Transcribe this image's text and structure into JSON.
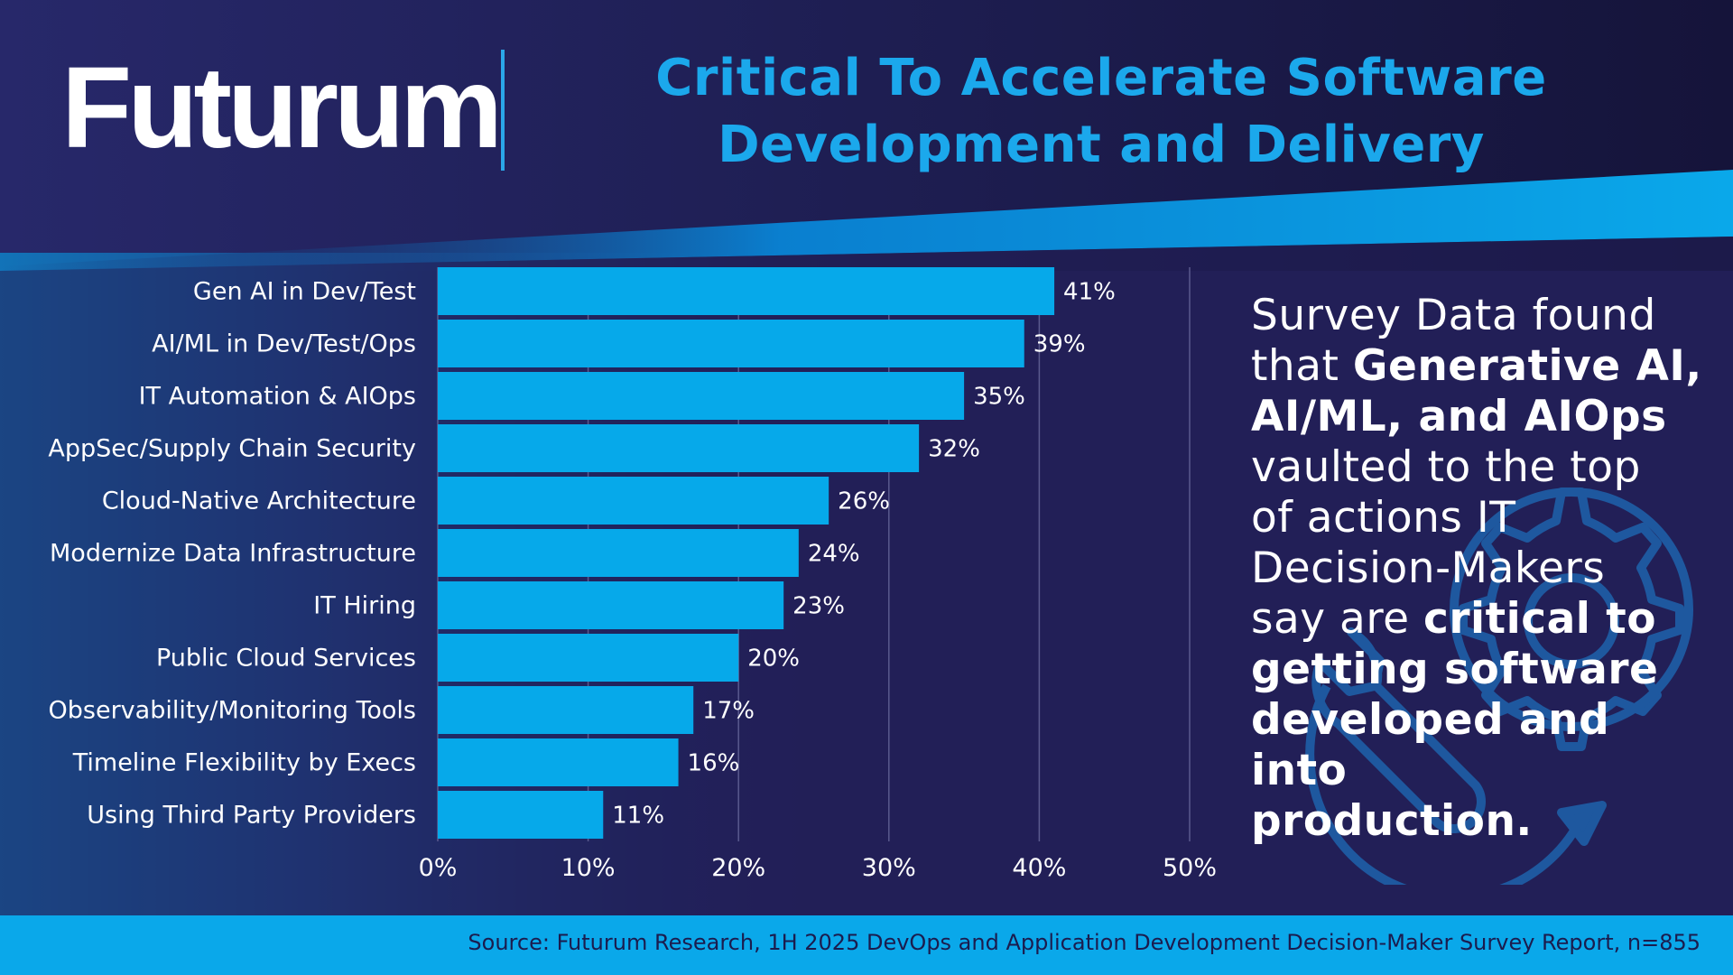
{
  "brand": {
    "logo_text": "Futurum",
    "accent_color": "#1ba8ec",
    "background_color": "#221f57",
    "bar_color": "#06a9ea"
  },
  "header": {
    "title_line1": "Critical To Accelerate Software",
    "title_line2": "Development and Delivery"
  },
  "chart_data": {
    "type": "bar",
    "orientation": "horizontal",
    "title": "Critical To Accelerate Software Development and Delivery",
    "categories": [
      "Gen AI in Dev/Test",
      "AI/ML in Dev/Test/Ops",
      "IT Automation & AIOps",
      "AppSec/Supply Chain Security",
      "Cloud-Native Architecture",
      "Modernize Data Infrastructure",
      "IT Hiring",
      "Public Cloud Services",
      "Observability/Monitoring Tools",
      "Timeline Flexibility by Execs",
      "Using Third Party Providers"
    ],
    "values": [
      41,
      39,
      35,
      32,
      26,
      24,
      23,
      20,
      17,
      16,
      11
    ],
    "value_labels": [
      "41%",
      "39%",
      "35%",
      "32%",
      "26%",
      "24%",
      "23%",
      "20%",
      "17%",
      "16%",
      "11%"
    ],
    "xlim": [
      0,
      50
    ],
    "xticks": [
      0,
      10,
      20,
      30,
      40,
      50
    ],
    "xtick_labels": [
      "0%",
      "10%",
      "20%",
      "30%",
      "40%",
      "50%"
    ],
    "xlabel": "",
    "ylabel": "",
    "grid": true
  },
  "side_panel": {
    "t1": "Survey Data found",
    "t2": "that ",
    "t3": "Generative AI,",
    "t4": "AI/ML, and AIOps",
    "t5": "vaulted to the top",
    "t6": "of actions IT",
    "t7": "Decision-Makers",
    "t8": "say are ",
    "t9": "critical to",
    "t10": "getting software",
    "t11": "developed and into",
    "t12": "production."
  },
  "footer": {
    "source": "Source: Futurum Research, 1H 2025 DevOps and Application Development Decision-Maker Survey Report, n=855"
  }
}
